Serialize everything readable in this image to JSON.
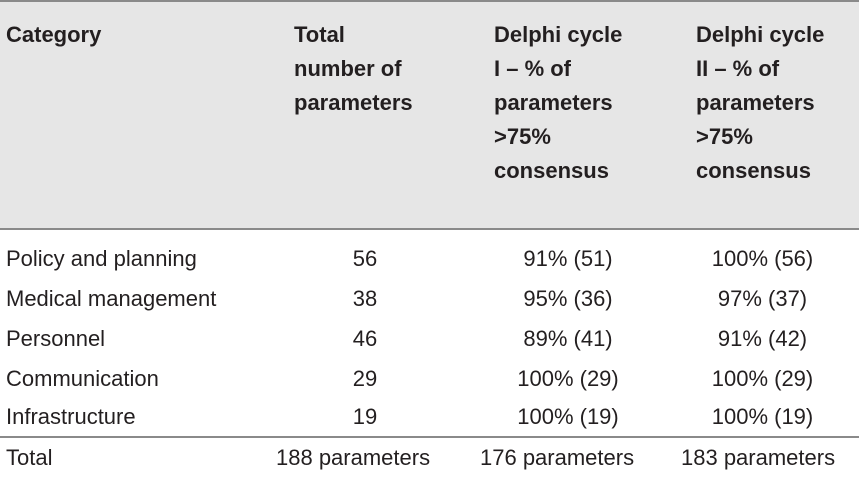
{
  "table": {
    "headers": {
      "category": "Category",
      "total": "Total\nnumber of\nparameters",
      "delphi1": "Delphi cycle\nI – % of\nparameters\n>75%\nconsensus",
      "delphi2": "Delphi cycle\nII – % of\nparameters\n>75%\nconsensus"
    },
    "rows": [
      {
        "category": "Policy and planning",
        "total": "56",
        "delphi1": "91% (51)",
        "delphi2": "100% (56)"
      },
      {
        "category": "Medical management",
        "total": "38",
        "delphi1": "95% (36)",
        "delphi2": "97% (37)"
      },
      {
        "category": "Personnel",
        "total": "46",
        "delphi1": "89% (41)",
        "delphi2": "91% (42)"
      },
      {
        "category": "Communication",
        "total": "29",
        "delphi1": "100% (29)",
        "delphi2": "100% (29)"
      },
      {
        "category": "Infrastructure",
        "total": "19",
        "delphi1": "100% (19)",
        "delphi2": "100% (19)"
      }
    ],
    "total_row": {
      "category": "Total",
      "total": "188 parameters",
      "delphi1": "176 parameters",
      "delphi2": "183 parameters"
    }
  }
}
